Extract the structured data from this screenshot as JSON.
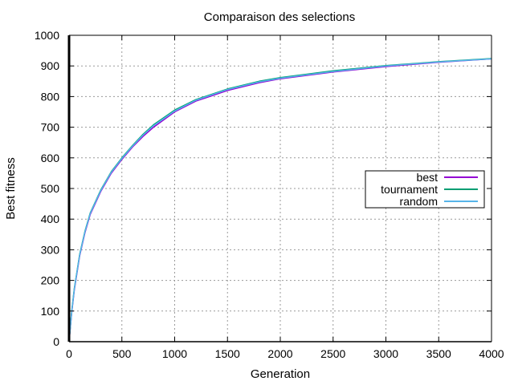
{
  "chart_data": {
    "type": "line",
    "title": "Comparaison des selections",
    "xlabel": "Generation",
    "ylabel": "Best fitness",
    "xlim": [
      0,
      4000
    ],
    "ylim": [
      0,
      1000
    ],
    "xticks": [
      0,
      500,
      1000,
      1500,
      2000,
      2500,
      3000,
      3500,
      4000
    ],
    "yticks": [
      0,
      100,
      200,
      300,
      400,
      500,
      600,
      700,
      800,
      900,
      1000
    ],
    "grid": true,
    "legend_position": "right",
    "series": [
      {
        "name": "best",
        "color": "#9400d3",
        "x": [
          0,
          25,
          50,
          100,
          150,
          200,
          300,
          400,
          500,
          600,
          700,
          800,
          1000,
          1200,
          1500,
          1800,
          2000,
          2500,
          3000,
          3500,
          4000
        ],
        "y": [
          0,
          95,
          170,
          280,
          355,
          415,
          490,
          550,
          595,
          635,
          670,
          700,
          750,
          785,
          820,
          845,
          858,
          880,
          898,
          912,
          923
        ]
      },
      {
        "name": "tournament",
        "color": "#009e73",
        "x": [
          0,
          25,
          50,
          100,
          150,
          200,
          300,
          400,
          500,
          600,
          700,
          800,
          1000,
          1200,
          1500,
          1800,
          2000,
          2500,
          3000,
          3500,
          4000
        ],
        "y": [
          0,
          100,
          175,
          285,
          360,
          420,
          495,
          555,
          600,
          640,
          677,
          708,
          756,
          790,
          825,
          850,
          862,
          884,
          901,
          914,
          924
        ]
      },
      {
        "name": "random",
        "color": "#56b4e9",
        "x": [
          0,
          25,
          50,
          100,
          150,
          200,
          300,
          400,
          500,
          600,
          700,
          800,
          1000,
          1200,
          1500,
          1800,
          2000,
          2500,
          3000,
          3500,
          4000
        ],
        "y": [
          0,
          98,
          173,
          283,
          358,
          418,
          493,
          553,
          598,
          638,
          674,
          705,
          753,
          788,
          823,
          848,
          860,
          882,
          900,
          913,
          923
        ]
      }
    ]
  }
}
